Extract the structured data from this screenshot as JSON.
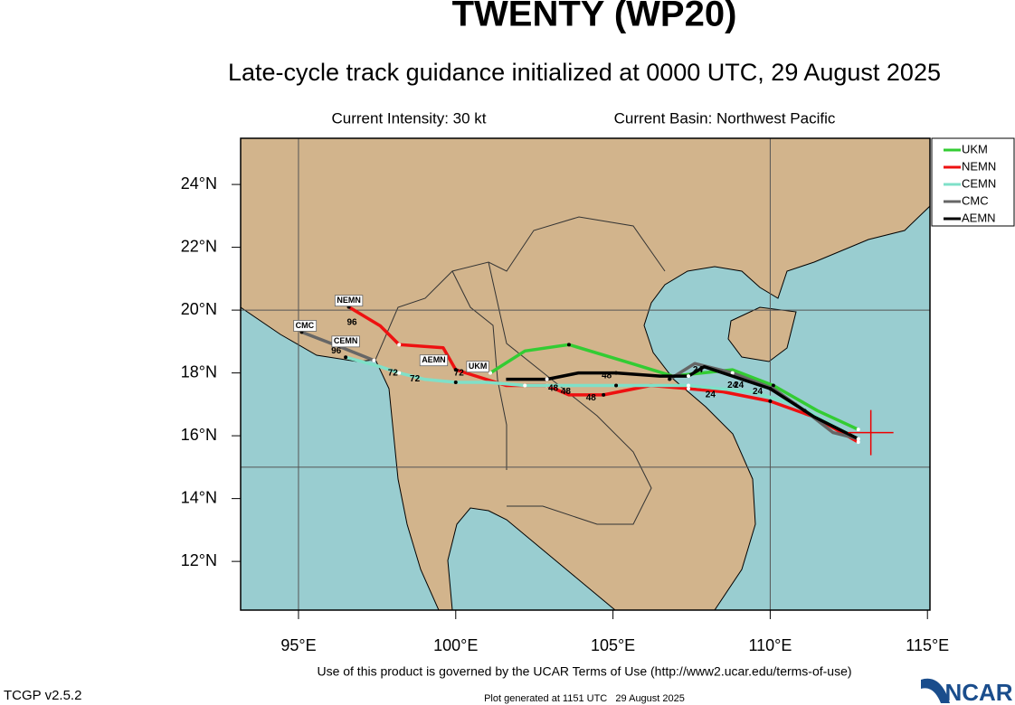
{
  "chart_data": {
    "type": "track-map",
    "title": "TWENTY (WP20)",
    "subtitle": "Late-cycle track guidance initialized at 0000 UTC, 29 August 2025",
    "intensity": "Current Intensity: 30 kt",
    "basin": "Current Basin: Northwest Pacific",
    "xlim": [
      93.16,
      115.08
    ],
    "ylim": [
      10.45,
      25.47
    ],
    "xticks": [
      {
        "value": 95,
        "label": "95°E"
      },
      {
        "value": 100,
        "label": "100°E"
      },
      {
        "value": 105,
        "label": "105°E"
      },
      {
        "value": 110,
        "label": "110°E"
      },
      {
        "value": 115,
        "label": "115°E"
      }
    ],
    "yticks": [
      {
        "value": 12,
        "label": "12°N"
      },
      {
        "value": 14,
        "label": "14°N"
      },
      {
        "value": 16,
        "label": "16°N"
      },
      {
        "value": 18,
        "label": "18°N"
      },
      {
        "value": 20,
        "label": "20°N"
      },
      {
        "value": 22,
        "label": "22°N"
      },
      {
        "value": 24,
        "label": "24°N"
      }
    ],
    "grid_lon": [
      95,
      110
    ],
    "grid_lat": [
      15,
      20
    ],
    "current_position": {
      "lon": 113.2,
      "lat": 16.1
    },
    "series": [
      {
        "name": "UKM",
        "color": "#33cc33",
        "lon": [
          112.8,
          111.5,
          110.1,
          108.8,
          106.9,
          105.6,
          103.6,
          102.2,
          101.1
        ],
        "lat": [
          16.2,
          16.8,
          17.6,
          18.1,
          17.9,
          18.3,
          18.9,
          18.7,
          18.0
        ]
      },
      {
        "name": "NEMN",
        "color": "#ee1111",
        "lon": [
          112.8,
          111.4,
          110.0,
          108.5,
          107.4,
          106.2,
          104.7,
          103.6,
          102.9,
          101.6,
          100.0,
          99.6,
          98.2,
          97.6,
          96.6
        ],
        "lat": [
          15.8,
          16.6,
          17.1,
          17.4,
          17.5,
          17.6,
          17.3,
          17.3,
          17.6,
          17.6,
          18.1,
          18.8,
          18.9,
          19.5,
          20.1
        ]
      },
      {
        "name": "CEMN",
        "color": "#7fe0c8",
        "lon": [
          112.8,
          111.7,
          110.8,
          109.4,
          107.4,
          106.4,
          105.1,
          103.6,
          102.2,
          101.0,
          100.0,
          99.0,
          98.2,
          97.6,
          96.5
        ],
        "lat": [
          15.9,
          16.5,
          17.0,
          17.4,
          17.6,
          17.6,
          17.6,
          17.6,
          17.6,
          17.7,
          17.7,
          17.8,
          18.0,
          18.2,
          18.5
        ]
      },
      {
        "name": "CMC",
        "color": "#666666",
        "lon": [
          112.8,
          112.0,
          111.1,
          110.1,
          108.8,
          107.6,
          106.8,
          null,
          97.4,
          96.4,
          95.1
        ],
        "lat": [
          15.9,
          16.1,
          16.8,
          17.5,
          18.0,
          18.3,
          17.8,
          null,
          18.4,
          18.8,
          19.3
        ]
      },
      {
        "name": "AEMN",
        "color": "#000000",
        "lon": [
          112.8,
          111.4,
          110.0,
          107.9,
          107.4,
          106.5,
          105.1,
          103.9,
          102.9,
          101.6
        ],
        "lat": [
          15.9,
          16.6,
          17.5,
          18.2,
          17.9,
          17.9,
          18.0,
          18.0,
          17.8,
          17.8
        ]
      }
    ],
    "model_labels": [
      {
        "text": "NEMN",
        "lon": 96.6,
        "lat": 20.3
      },
      {
        "text": "CMC",
        "lon": 95.2,
        "lat": 19.5
      },
      {
        "text": "CEMN",
        "lon": 96.5,
        "lat": 19.0
      },
      {
        "text": "AEMN",
        "lon": 99.3,
        "lat": 18.4
      },
      {
        "text": "UKM",
        "lon": 100.7,
        "lat": 18.2
      }
    ],
    "hour_labels": [
      {
        "text": "96",
        "lon": 96.7,
        "lat": 19.6
      },
      {
        "text": "96",
        "lon": 96.2,
        "lat": 18.7
      },
      {
        "text": "72",
        "lon": 98.0,
        "lat": 18.0
      },
      {
        "text": "72",
        "lon": 98.7,
        "lat": 17.8
      },
      {
        "text": "72",
        "lon": 100.1,
        "lat": 18.0
      },
      {
        "text": "48",
        "lon": 103.1,
        "lat": 17.5
      },
      {
        "text": "48",
        "lon": 103.5,
        "lat": 17.4
      },
      {
        "text": "48",
        "lon": 104.3,
        "lat": 17.2
      },
      {
        "text": "48",
        "lon": 104.8,
        "lat": 17.9
      },
      {
        "text": "24",
        "lon": 107.7,
        "lat": 18.1
      },
      {
        "text": "24",
        "lon": 108.1,
        "lat": 17.3
      },
      {
        "text": "24",
        "lon": 108.8,
        "lat": 17.6
      },
      {
        "text": "24",
        "lon": 109.0,
        "lat": 17.6
      },
      {
        "text": "24",
        "lon": 109.6,
        "lat": 17.4
      }
    ],
    "terms": "Use of this product is governed by the UCAR Terms of Use (http://www2.ucar.edu/terms-of-use)",
    "version": "TCGP v2.5.2",
    "generated": "Plot generated at 1151 UTC   29 August 2025",
    "logo": "NCAR"
  }
}
